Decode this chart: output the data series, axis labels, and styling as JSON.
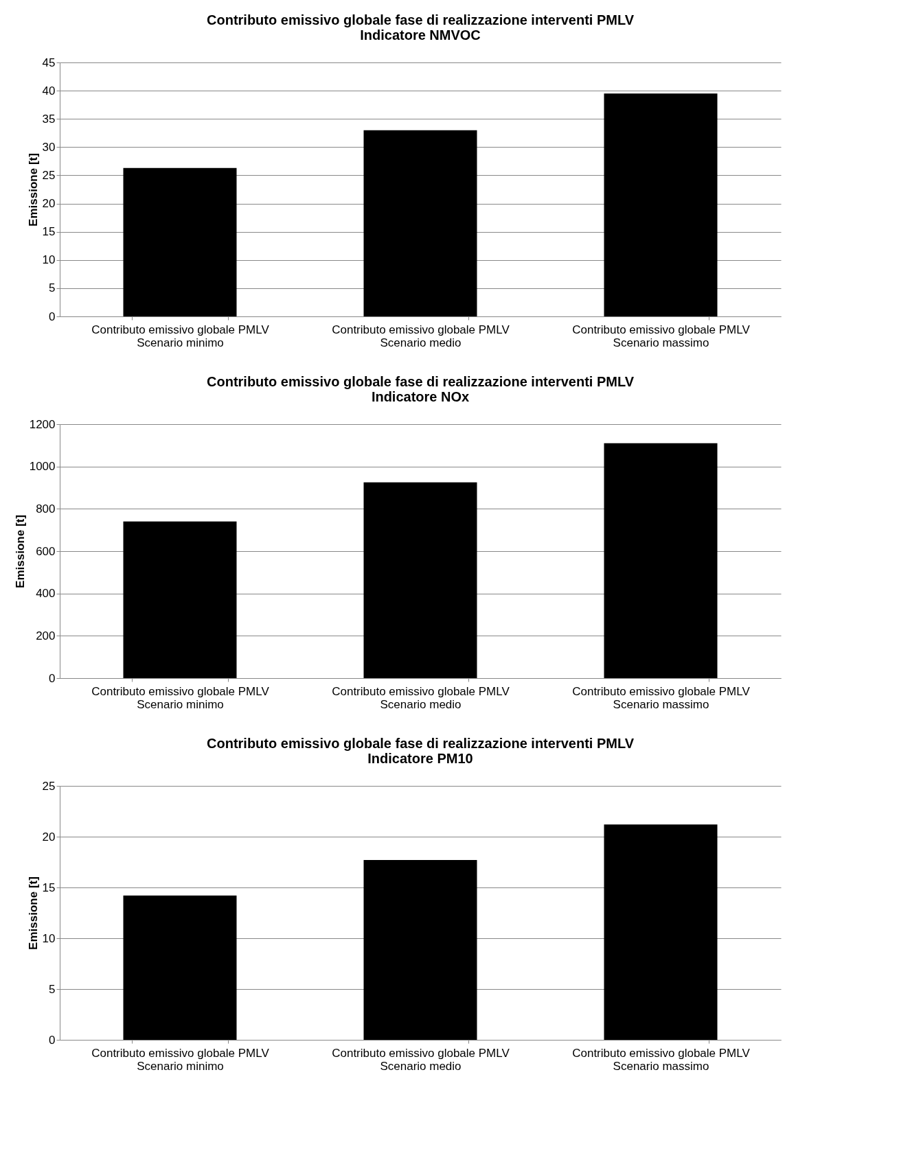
{
  "chart_data": [
    {
      "type": "bar",
      "title": [
        "Contributo emissivo globale fase di realizzazione interventi PMLV",
        "Indicatore NMVOC"
      ],
      "ylabel": "Emissione [t]",
      "categories": [
        "Contributo emissivo globale PMLV\nScenario minimo",
        "Contributo emissivo globale PMLV\nScenario medio",
        "Contributo emissivo globale PMLV\nScenario massimo"
      ],
      "values": [
        26.3,
        33.0,
        39.5
      ],
      "color": "#000000",
      "ylim": [
        0,
        45
      ],
      "yticks": [
        0,
        5,
        10,
        15,
        20,
        25,
        30,
        35,
        40,
        45
      ],
      "grid": "y",
      "legend": false
    },
    {
      "type": "bar",
      "title": [
        "Contributo emissivo globale fase di realizzazione interventi PMLV",
        "Indicatore NOx"
      ],
      "ylabel": "Emissione [t]",
      "categories": [
        "Contributo emissivo globale PMLV\nScenario minimo",
        "Contributo emissivo globale PMLV\nScenario medio",
        "Contributo emissivo globale PMLV\nScenario massimo"
      ],
      "values": [
        740,
        925,
        1110
      ],
      "color": "#000000",
      "ylim": [
        0,
        1200
      ],
      "yticks": [
        0,
        200,
        400,
        600,
        800,
        1000,
        1200
      ],
      "grid": "y",
      "legend": false
    },
    {
      "type": "bar",
      "title": [
        "Contributo emissivo globale fase di realizzazione interventi PMLV",
        "Indicatore PM10"
      ],
      "ylabel": "Emissione [t]",
      "categories": [
        "Contributo emissivo globale PMLV\nScenario minimo",
        "Contributo emissivo globale PMLV\nScenario medio",
        "Contributo emissivo globale PMLV\nScenario massimo"
      ],
      "values": [
        14.2,
        17.7,
        21.2
      ],
      "color": "#000000",
      "ylim": [
        0,
        25
      ],
      "yticks": [
        0,
        5,
        10,
        15,
        20,
        25
      ],
      "grid": "y",
      "legend": false
    }
  ]
}
